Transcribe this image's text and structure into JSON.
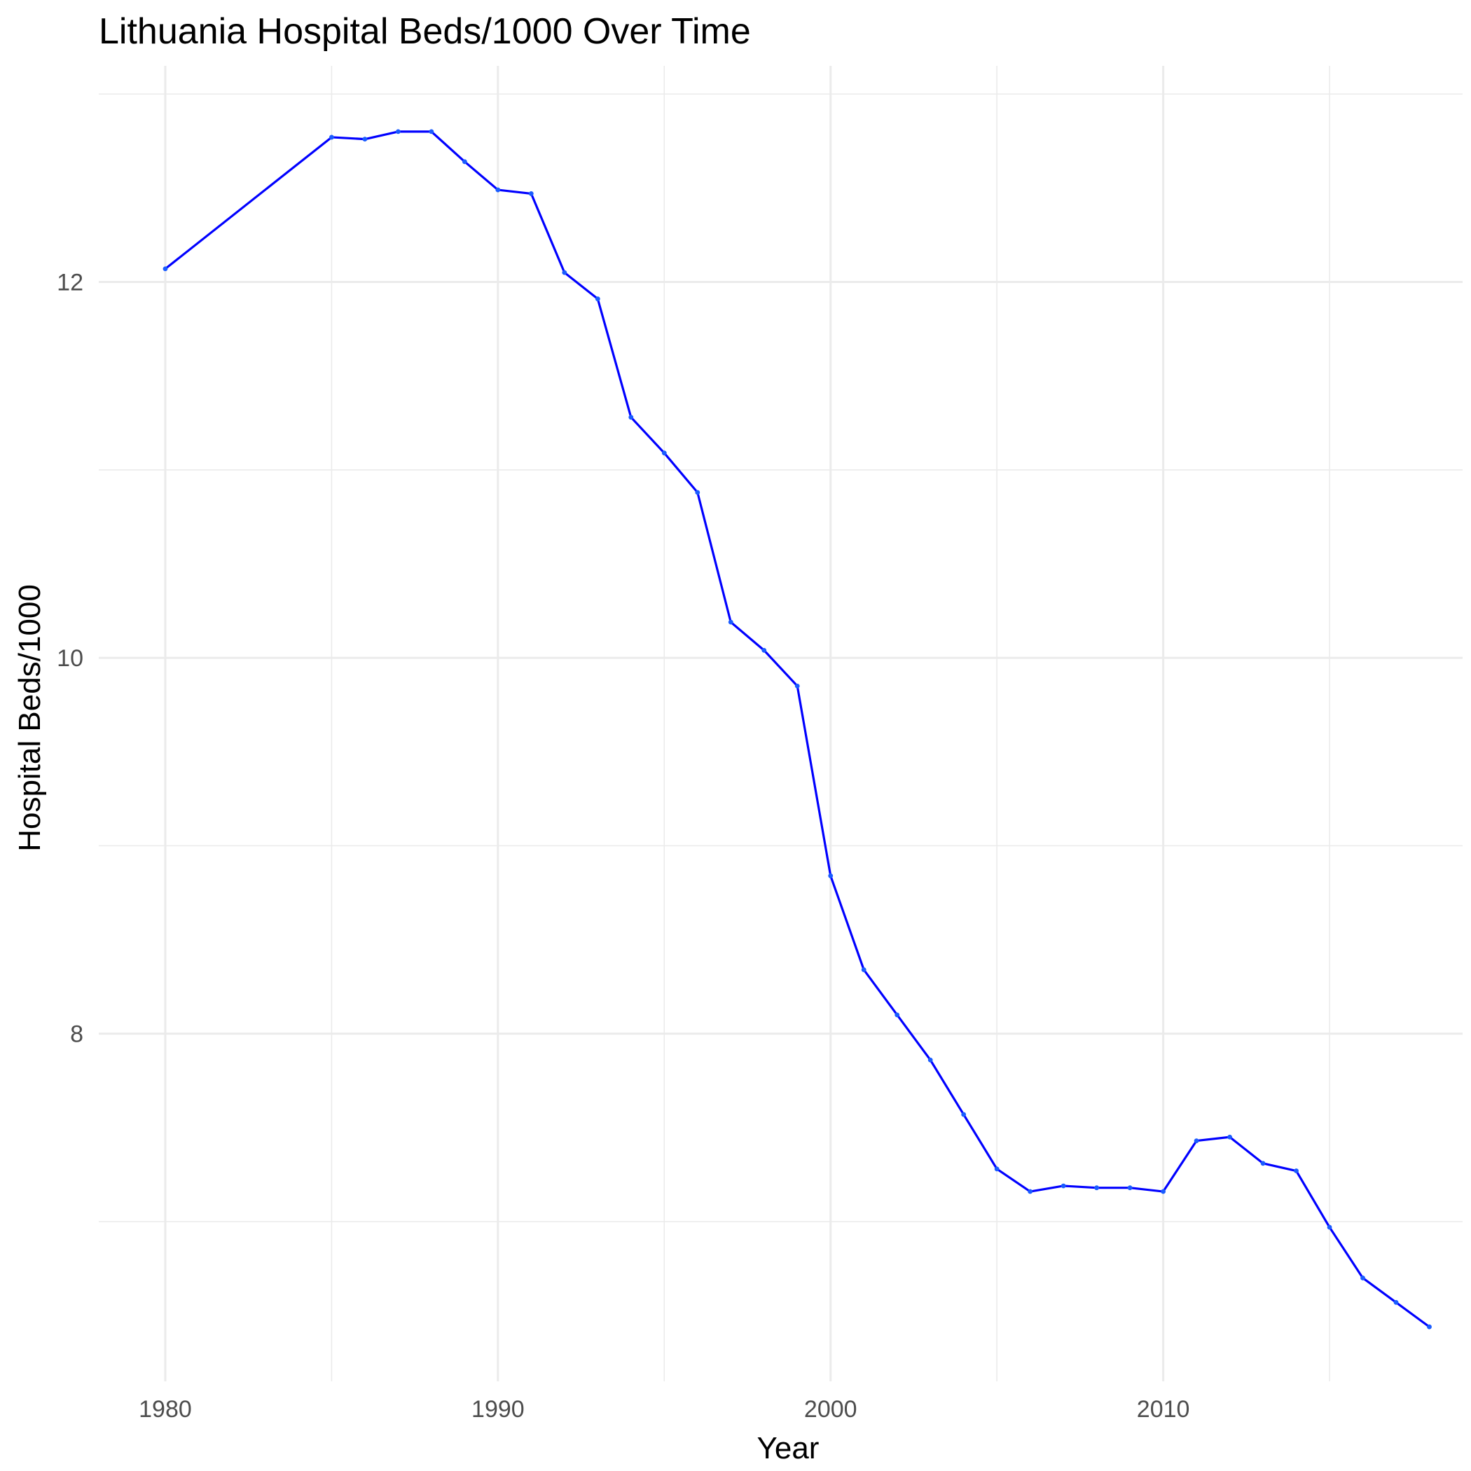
{
  "chart_data": {
    "type": "line",
    "title": "Lithuania Hospital Beds/1000 Over Time",
    "xlabel": "Year",
    "ylabel": "Hospital Beds/1000",
    "xlim": [
      1978,
      2019
    ],
    "ylim": [
      6.15,
      13.15
    ],
    "x_ticks": [
      1980,
      1990,
      2000,
      2010
    ],
    "x_minor_ticks": [
      1985,
      1995,
      2005,
      2015
    ],
    "y_ticks": [
      8,
      10,
      12
    ],
    "y_minor_ticks": [
      7,
      9,
      11,
      13
    ],
    "grid": true,
    "legend": "none",
    "series": [
      {
        "color": "#0000ff",
        "x": [
          1980,
          1985,
          1986,
          1987,
          1988,
          1989,
          1990,
          1991,
          1992,
          1993,
          1994,
          1995,
          1996,
          1997,
          1998,
          1999,
          2000,
          2001,
          2002,
          2003,
          2004,
          2005,
          2006,
          2007,
          2008,
          2009,
          2010,
          2011,
          2012,
          2013,
          2014,
          2015,
          2016,
          2017,
          2018
        ],
        "y": [
          12.07,
          12.77,
          12.76,
          12.8,
          12.8,
          12.64,
          12.49,
          12.47,
          12.05,
          11.91,
          11.28,
          11.09,
          10.88,
          10.19,
          10.04,
          9.85,
          8.84,
          8.34,
          8.1,
          7.86,
          7.57,
          7.28,
          7.16,
          7.19,
          7.18,
          7.18,
          7.16,
          7.43,
          7.45,
          7.31,
          7.27,
          6.97,
          6.7,
          6.57,
          6.44
        ]
      }
    ]
  }
}
